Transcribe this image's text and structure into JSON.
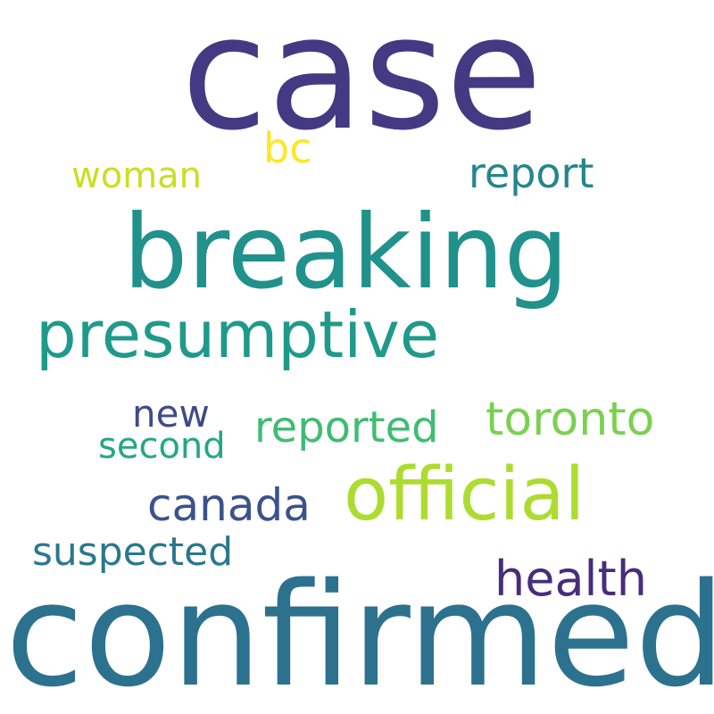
{
  "words": {
    "case": {
      "text": "case",
      "color": "#443983"
    },
    "breaking": {
      "text": "breaking",
      "color": "#21918c"
    },
    "confirmed": {
      "text": "confirmed",
      "color": "#2c728e"
    },
    "presumptive": {
      "text": "presumptive",
      "color": "#1f9a8a"
    },
    "official": {
      "text": "official",
      "color": "#addc30"
    },
    "toronto": {
      "text": "toronto",
      "color": "#7ad151"
    },
    "health": {
      "text": "health",
      "color": "#472d7b"
    },
    "canada": {
      "text": "canada",
      "color": "#3b528b"
    },
    "reported": {
      "text": "reported",
      "color": "#3fbc73"
    },
    "report": {
      "text": "report",
      "color": "#25858e"
    },
    "suspected": {
      "text": "suspected",
      "color": "#2a788e"
    },
    "bc": {
      "text": "bc",
      "color": "#fde725"
    },
    "new": {
      "text": "new",
      "color": "#3e4a89"
    },
    "second": {
      "text": "second",
      "color": "#22a884"
    },
    "woman": {
      "text": "woman",
      "color": "#c8e020"
    }
  }
}
